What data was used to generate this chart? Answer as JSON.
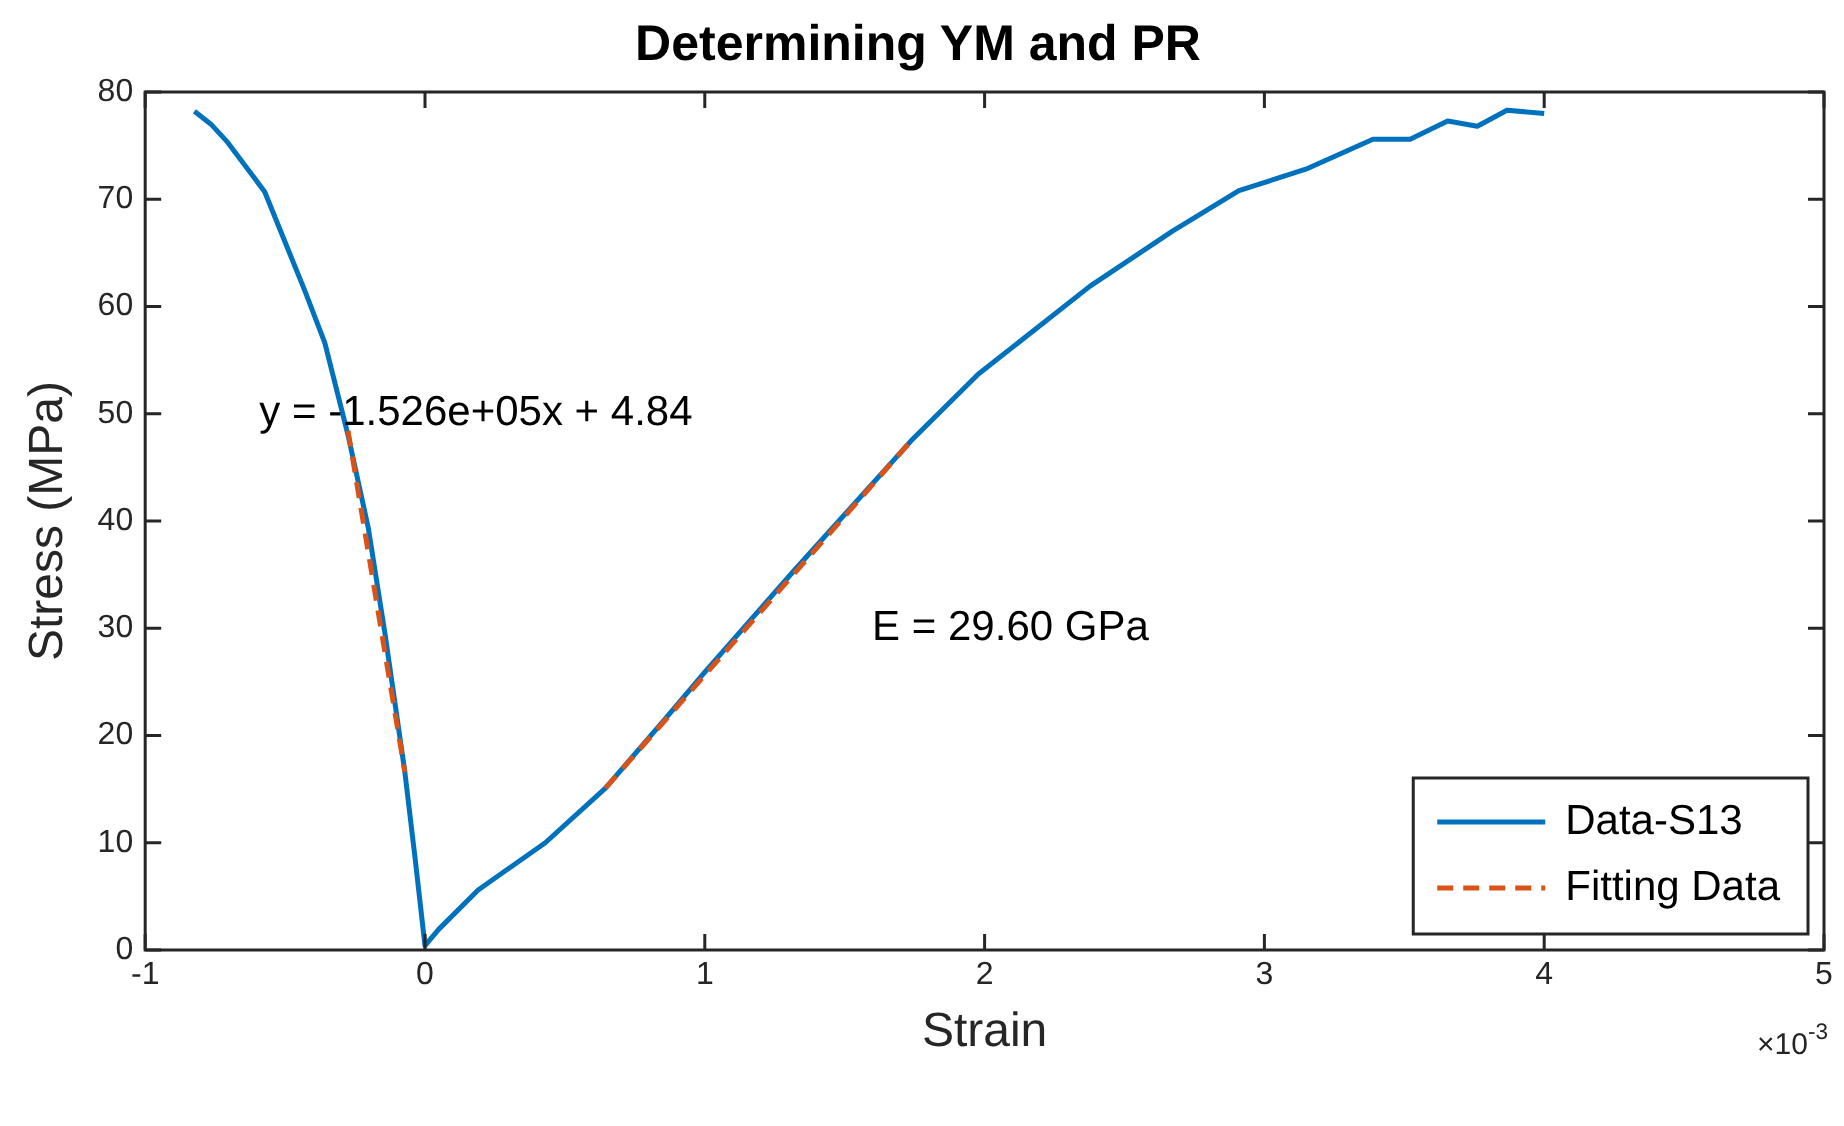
{
  "chart_data": {
    "type": "line",
    "title": "Determining YM and PR",
    "xlabel": "Strain",
    "ylabel": "Stress (MPa)",
    "xlim": [
      -1,
      5
    ],
    "xticks": [
      -1,
      0,
      1,
      2,
      3,
      4,
      5
    ],
    "ylim": [
      0,
      80
    ],
    "yticks": [
      0,
      10,
      20,
      30,
      40,
      50,
      60,
      70,
      80
    ],
    "grid": false,
    "legend": "bottom right",
    "marker": "none",
    "series": [
      {
        "name": "Data-S13",
        "color": "#0072bd",
        "line_style": "solid",
        "x": [
          -0.824,
          -0.765,
          -0.705,
          -0.573,
          -0.43,
          -0.358,
          -0.275,
          -0.203,
          -0.143,
          -0.072,
          -0.036,
          0,
          0.048,
          0.19,
          0.43,
          0.645,
          0.86,
          1.0,
          1.313,
          1.738,
          1.978,
          2.377,
          2.67,
          2.909,
          3.148,
          3.388,
          3.521,
          3.655,
          3.761,
          3.867,
          4.0
        ],
        "values": [
          78.2,
          77.0,
          75.3,
          70.7,
          61.5,
          56.6,
          48,
          39.4,
          29.5,
          16.6,
          8.7,
          0.4,
          1.9,
          5.6,
          10,
          15.1,
          21.6,
          25.9,
          35.2,
          47.5,
          53.7,
          61.9,
          67.0,
          70.8,
          72.8,
          75.6,
          75.6,
          77.3,
          76.8,
          78.3,
          78.0
        ]
      },
      {
        "name": "Fitting Data",
        "color": "#d95319",
        "line_style": "dashed",
        "x": [
          -0.275,
          -0.072,
          0.3,
          0.645,
          1.738
        ],
        "values": [
          48.4,
          16.6,
          null,
          15.1,
          47.5
        ]
      }
    ],
    "annotations": [
      "y = -1.526e+05x + 4.84",
      "E = 29.60 GPa",
      "×10$^{-3}$"
    ]
  }
}
